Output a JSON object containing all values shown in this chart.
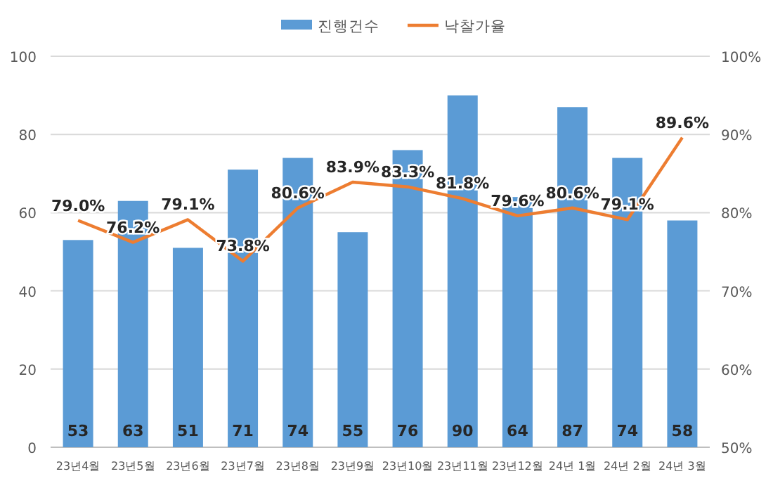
{
  "chart_data": {
    "type": "bar",
    "categories": [
      "23년4월",
      "23년5월",
      "23년6월",
      "23년7월",
      "23년8월",
      "23년9월",
      "23년10월",
      "23년11월",
      "23년12월",
      "24년 1월",
      "24년 2월",
      "24년 3월"
    ],
    "series": [
      {
        "name": "진행건수",
        "color": "#5b9bd5",
        "values": [
          53,
          63,
          51,
          71,
          74,
          55,
          76,
          90,
          64,
          87,
          74,
          58
        ],
        "data_labels": true
      },
      {
        "name": "낙찰가율",
        "type": "line",
        "axis": "y2",
        "color": "#ed7d31",
        "marker": "none",
        "values": [
          79.0,
          76.2,
          79.1,
          73.8,
          80.6,
          83.9,
          83.3,
          81.8,
          79.6,
          80.6,
          79.1,
          89.6
        ],
        "value_labels": [
          "79.0%",
          "76.2%",
          "79.1%",
          "73.8%",
          "80.6%",
          "83.9%",
          "83.3%",
          "81.8%",
          "79.6%",
          "80.6%",
          "79.1%",
          "89.6%"
        ]
      }
    ],
    "ylim": [
      0,
      100
    ],
    "yticks": [
      0,
      20,
      40,
      60,
      80,
      100
    ],
    "y2lim": [
      50,
      100
    ],
    "y2ticks": [
      {
        "value": 50,
        "label": "50%"
      },
      {
        "value": 60,
        "label": "60%"
      },
      {
        "value": 70,
        "label": "70%"
      },
      {
        "value": 80,
        "label": "80%"
      },
      {
        "value": 90,
        "label": "90%"
      },
      {
        "value": 100,
        "label": "100%"
      }
    ],
    "grid": "y",
    "legend": "top"
  }
}
